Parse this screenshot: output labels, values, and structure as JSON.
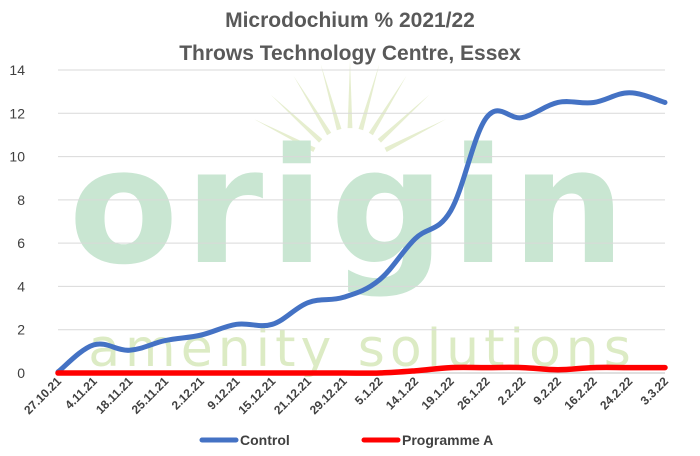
{
  "watermark": {
    "word": "origin",
    "tagline": "amenity solutions",
    "color_light": "#dcebc4",
    "color_green": "#c9e6d2",
    "color_sun": "#e6eecf"
  },
  "chart_data": {
    "type": "line",
    "title": "Microdochium % 2021/22",
    "subtitle": "Throws Technology Centre, Essex",
    "xlabel": "",
    "ylabel": "",
    "ylim": [
      0,
      14
    ],
    "yticks": [
      0,
      2,
      4,
      6,
      8,
      10,
      12,
      14
    ],
    "grid": true,
    "legend_position": "bottom",
    "categories": [
      "27.10.21",
      "4.11.21",
      "18.11.21",
      "25.11.21",
      "2.12.21",
      "9.12.21",
      "15.12.21",
      "21.12.21",
      "29.12.21",
      "5.1.22",
      "14.1.22",
      "19.1.22",
      "26.1.22",
      "2.2.22",
      "9.2.22",
      "16.2.22",
      "24.2.22",
      "3.3.22"
    ],
    "series": [
      {
        "name": "Control",
        "color": "#4472c4",
        "values": [
          0.05,
          1.3,
          1.05,
          1.5,
          1.75,
          2.25,
          2.25,
          3.25,
          3.5,
          4.3,
          6.2,
          7.5,
          11.8,
          11.8,
          12.5,
          12.5,
          12.95,
          12.5
        ]
      },
      {
        "name": "Programme A",
        "color": "#ff0000",
        "values": [
          0,
          0,
          0,
          0,
          0,
          0,
          0,
          0,
          0,
          0,
          0.1,
          0.25,
          0.25,
          0.25,
          0.15,
          0.25,
          0.25,
          0.25
        ]
      }
    ]
  }
}
